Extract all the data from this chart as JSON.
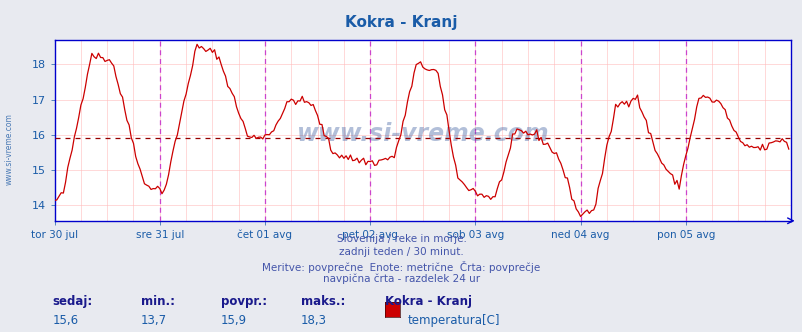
{
  "title": "Kokra - Kranj",
  "title_color": "#1a5ca8",
  "bg_color": "#e8eaf0",
  "plot_bg_color": "#ffffff",
  "line_color": "#cc0000",
  "avg_line_color": "#990000",
  "avg_line_value": 15.9,
  "ylim": [
    13.55,
    18.7
  ],
  "yticks": [
    14,
    15,
    16,
    17,
    18
  ],
  "xlabel_color": "#1a5ca8",
  "ylabel_color": "#1a5ca8",
  "x_labels": [
    "tor 30 jul",
    "sre 31 jul",
    "čet 01 avg",
    "pet 02 avg",
    "sob 03 avg",
    "ned 04 avg",
    "pon 05 avg"
  ],
  "vline_color_major": "#cc44cc",
  "grid_color": "#ffbbbb",
  "subtitle_lines": [
    "Slovenija / reke in morje.",
    "zadnji teden / 30 minut.",
    "Meritve: povprečne  Enote: metrične  Črta: povprečje",
    "navpična črta - razdelek 24 ur"
  ],
  "subtitle_color": "#4455aa",
  "footer_labels": [
    "sedaj:",
    "min.:",
    "povpr.:",
    "maks.:"
  ],
  "footer_values": [
    "15,6",
    "13,7",
    "15,9",
    "18,3"
  ],
  "footer_series_name": "Kokra - Kranj",
  "footer_legend_label": "temperatura[C]",
  "footer_label_color": "#1a1a8c",
  "footer_value_color": "#1a5ca8",
  "watermark": "www.si-vreme.com",
  "watermark_color": "#4060a0",
  "n_points": 336,
  "spine_color": "#0000cc",
  "keypoints_x": [
    0,
    0.08,
    0.35,
    0.55,
    0.85,
    1.05,
    1.35,
    1.55,
    1.85,
    2.05,
    2.25,
    2.45,
    2.65,
    2.85,
    3.05,
    3.25,
    3.45,
    3.65,
    3.85,
    4.05,
    4.2,
    4.4,
    4.6,
    4.8,
    5.0,
    5.15,
    5.35,
    5.55,
    5.75,
    5.95,
    6.15,
    6.35,
    6.55,
    6.75,
    6.95,
    7.0
  ],
  "keypoints_y": [
    14.1,
    14.3,
    18.3,
    18.1,
    14.6,
    14.4,
    18.5,
    18.3,
    15.9,
    16.0,
    17.0,
    16.9,
    15.5,
    15.3,
    15.2,
    15.4,
    18.0,
    17.8,
    14.7,
    14.3,
    14.2,
    16.1,
    16.0,
    15.4,
    13.7,
    13.9,
    16.8,
    17.1,
    15.4,
    14.5,
    17.1,
    16.9,
    15.7,
    15.6,
    15.9,
    15.6
  ]
}
